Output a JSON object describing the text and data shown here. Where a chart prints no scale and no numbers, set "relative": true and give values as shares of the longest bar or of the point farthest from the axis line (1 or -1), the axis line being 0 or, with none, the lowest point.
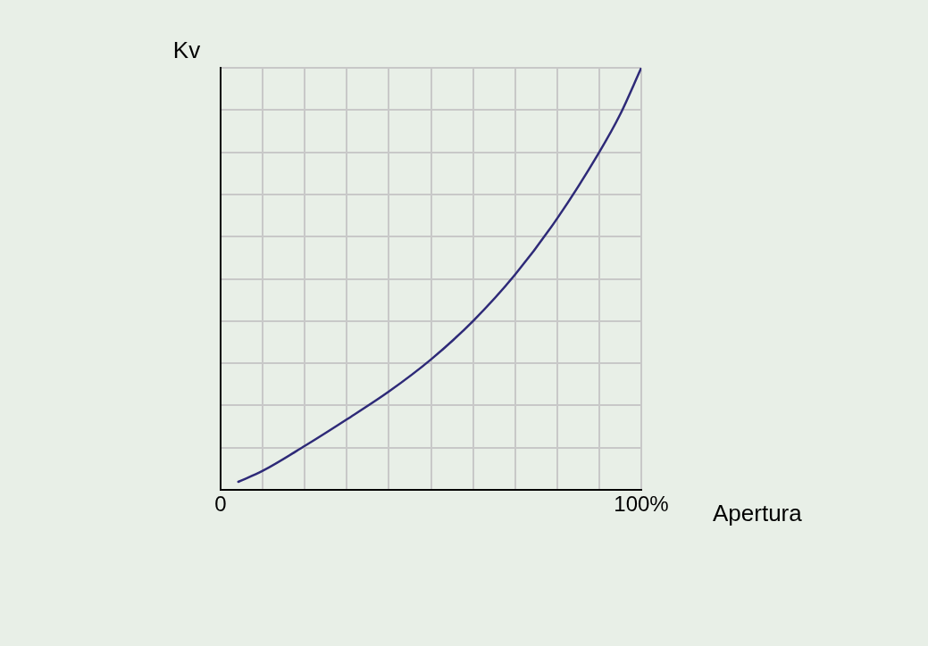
{
  "chart_data": {
    "type": "line",
    "xlabel": "Apertura",
    "ylabel": "Kv",
    "relative": true,
    "grid": true,
    "marker": "none",
    "line_style": "solid",
    "xlim": [
      0,
      100
    ],
    "xticks": [
      0,
      {
        "value": 10,
        "label": null
      },
      {
        "value": 20,
        "label": null
      },
      {
        "value": 30,
        "label": null
      },
      {
        "value": 40,
        "label": null
      },
      {
        "value": 50,
        "label": null
      },
      {
        "value": 60,
        "label": null
      },
      {
        "value": 70,
        "label": null
      },
      {
        "value": 80,
        "label": null
      },
      {
        "value": 90,
        "label": null
      },
      {
        "value": 100,
        "label": "100%"
      }
    ],
    "series": [
      {
        "color": "#2e2a78",
        "x": [
          4.2,
          10,
          20,
          30,
          40,
          50,
          60,
          70,
          80,
          90,
          95,
          100
        ],
        "values": [
          0.019,
          0.045,
          0.104,
          0.167,
          0.233,
          0.309,
          0.4,
          0.51,
          0.643,
          0.8,
          0.89,
          1
        ]
      }
    ]
  }
}
